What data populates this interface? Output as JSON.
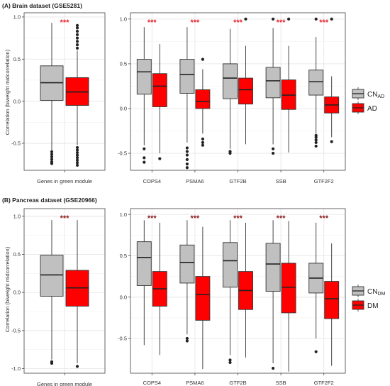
{
  "colors": {
    "control": "#c0c0c0",
    "disease": "#ff0000",
    "stroke": "#333333",
    "grid": "#e6e6e6",
    "frame": "#555555",
    "star_brain": "#e8202a",
    "star_pancreas": "#8b1a1a"
  },
  "panels": [
    {
      "title": "(A) Brain dataset (GSE5281)",
      "ylabel": "Correlation (biweight midcorrelation)",
      "legend": [
        {
          "label_main": "CN",
          "label_sub": "AD",
          "color_key": "control"
        },
        {
          "label_main": "AD",
          "label_sub": "",
          "color_key": "disease"
        }
      ],
      "star_color_key": "star_brain",
      "left": {
        "ylim": [
          -0.82,
          1.05
        ],
        "yticks": [
          "1.0",
          "0.5",
          "0.0",
          "-0.5"
        ],
        "ytick_values": [
          1.0,
          0.5,
          0.0,
          -0.5
        ],
        "category": "Genes in green module",
        "significance": "***",
        "boxes": [
          {
            "q1": 0.01,
            "median": 0.22,
            "q3": 0.42,
            "wlo": -0.58,
            "whi": 0.93,
            "outliers_lo": [
              -0.6,
              -0.63,
              -0.66,
              -0.69,
              -0.72,
              -0.74
            ],
            "outliers_hi": [],
            "group": "control"
          },
          {
            "q1": -0.05,
            "median": 0.11,
            "q3": 0.28,
            "wlo": -0.52,
            "whi": 0.6,
            "outliers_lo": [
              -0.55,
              -0.58,
              -0.61,
              -0.64,
              -0.67,
              -0.7,
              -0.73,
              -0.76
            ],
            "outliers_hi": [
              0.63,
              0.67,
              0.71,
              0.75,
              0.79,
              0.83,
              0.87,
              0.9
            ],
            "group": "disease"
          }
        ]
      },
      "right": {
        "ylim": [
          -0.69,
          1.07
        ],
        "yticks": [
          "1.0",
          "0.5",
          "0.0",
          "-0.5"
        ],
        "ytick_values": [
          1.0,
          0.5,
          0.0,
          -0.5
        ],
        "categories": [
          {
            "label": "COPS4",
            "significance": "***",
            "boxes": [
              {
                "q1": 0.16,
                "median": 0.41,
                "q3": 0.55,
                "wlo": -0.41,
                "whi": 0.91,
                "outliers_lo": [
                  -0.45,
                  -0.55,
                  -0.6
                ],
                "outliers_hi": [],
                "group": "control"
              },
              {
                "q1": 0.02,
                "median": 0.25,
                "q3": 0.39,
                "wlo": -0.5,
                "whi": 0.72,
                "outliers_lo": [
                  -0.56
                ],
                "outliers_hi": [],
                "group": "disease"
              }
            ]
          },
          {
            "label": "PSMA6",
            "significance": "***",
            "boxes": [
              {
                "q1": 0.17,
                "median": 0.38,
                "q3": 0.55,
                "wlo": -0.38,
                "whi": 0.91,
                "outliers_lo": [
                  -0.44,
                  -0.48,
                  -0.52,
                  -0.57,
                  -0.62,
                  -0.66
                ],
                "outliers_hi": [],
                "group": "control"
              },
              {
                "q1": 0.0,
                "median": 0.08,
                "q3": 0.21,
                "wlo": -0.28,
                "whi": 0.44,
                "outliers_lo": [
                  -0.34,
                  -0.38,
                  -0.41
                ],
                "outliers_hi": [
                  0.55
                ],
                "group": "disease"
              }
            ]
          },
          {
            "label": "GTF2B",
            "significance": "***",
            "boxes": [
              {
                "q1": 0.11,
                "median": 0.34,
                "q3": 0.5,
                "wlo": -0.45,
                "whi": 0.89,
                "outliers_lo": [
                  -0.48,
                  -0.5
                ],
                "outliers_hi": [],
                "group": "control"
              },
              {
                "q1": 0.05,
                "median": 0.21,
                "q3": 0.34,
                "wlo": -0.4,
                "whi": 0.7,
                "outliers_lo": [],
                "outliers_hi": [
                  1.0
                ],
                "group": "disease"
              }
            ]
          },
          {
            "label": "SSB",
            "significance": "***",
            "boxes": [
              {
                "q1": 0.12,
                "median": 0.31,
                "q3": 0.46,
                "wlo": -0.4,
                "whi": 0.9,
                "outliers_lo": [
                  -0.45,
                  -0.5
                ],
                "outliers_hi": [
                  1.0
                ],
                "group": "control"
              },
              {
                "q1": -0.01,
                "median": 0.15,
                "q3": 0.32,
                "wlo": -0.49,
                "whi": 0.7,
                "outliers_lo": [],
                "outliers_hi": [
                  1.0
                ],
                "group": "disease"
              }
            ]
          },
          {
            "label": "GTF2F2",
            "significance": "***",
            "boxes": [
              {
                "q1": 0.15,
                "median": 0.3,
                "q3": 0.43,
                "wlo": -0.28,
                "whi": 0.8,
                "outliers_lo": [
                  -0.3,
                  -0.32,
                  -0.35,
                  -0.38,
                  -0.42
                ],
                "outliers_hi": [
                  1.0
                ],
                "group": "control"
              },
              {
                "q1": -0.05,
                "median": 0.04,
                "q3": 0.13,
                "wlo": -0.32,
                "whi": 0.36,
                "outliers_lo": [
                  -0.37
                ],
                "outliers_hi": [
                  1.0
                ],
                "group": "disease"
              }
            ]
          }
        ]
      }
    },
    {
      "title": "(B) Pancreas dataset (GSE20966)",
      "ylabel": "Correlation (biweight midcorrelation)",
      "legend": [
        {
          "label_main": "CN",
          "label_sub": "DM",
          "color_key": "control"
        },
        {
          "label_main": "DM",
          "label_sub": "",
          "color_key": "disease"
        }
      ],
      "star_color_key": "star_pancreas",
      "left": {
        "ylim": [
          -1.06,
          1.1
        ],
        "yticks": [
          "1.0",
          "0.5",
          "0.0",
          "-0.5",
          "-1.0"
        ],
        "ytick_values": [
          1.0,
          0.5,
          0.0,
          -0.5,
          -1.0
        ],
        "category": "Genes in green module",
        "significance": "***",
        "boxes": [
          {
            "q1": -0.05,
            "median": 0.23,
            "q3": 0.49,
            "wlo": -0.88,
            "whi": 0.95,
            "outliers_lo": [
              -0.91,
              -0.93
            ],
            "outliers_hi": [],
            "group": "control"
          },
          {
            "q1": -0.18,
            "median": 0.06,
            "q3": 0.29,
            "wlo": -0.93,
            "whi": 0.95,
            "outliers_lo": [
              -0.97
            ],
            "outliers_hi": [],
            "group": "disease"
          }
        ]
      },
      "right": {
        "ylim": [
          -0.92,
          1.07
        ],
        "yticks": [
          "1.0",
          "0.5",
          "0.0",
          "-0.5"
        ],
        "ytick_values": [
          1.0,
          0.5,
          0.0,
          -0.5
        ],
        "categories": [
          {
            "label": "COPS4",
            "significance": "***",
            "boxes": [
              {
                "q1": 0.14,
                "median": 0.48,
                "q3": 0.67,
                "wlo": -0.58,
                "whi": 0.93,
                "outliers_lo": [],
                "outliers_hi": [],
                "group": "control"
              },
              {
                "q1": -0.11,
                "median": 0.1,
                "q3": 0.31,
                "wlo": -0.7,
                "whi": 0.9,
                "outliers_lo": [],
                "outliers_hi": [],
                "group": "disease"
              }
            ]
          },
          {
            "label": "PSMA6",
            "significance": "***",
            "boxes": [
              {
                "q1": 0.17,
                "median": 0.42,
                "q3": 0.63,
                "wlo": -0.45,
                "whi": 0.93,
                "outliers_lo": [
                  -0.5,
                  -0.53
                ],
                "outliers_hi": [],
                "group": "control"
              },
              {
                "q1": -0.28,
                "median": 0.03,
                "q3": 0.25,
                "wlo": -0.87,
                "whi": 0.85,
                "outliers_lo": [],
                "outliers_hi": [],
                "group": "disease"
              }
            ]
          },
          {
            "label": "GTF2B",
            "significance": "***",
            "boxes": [
              {
                "q1": 0.12,
                "median": 0.44,
                "q3": 0.66,
                "wlo": -0.7,
                "whi": 0.93,
                "outliers_lo": [
                  -0.76,
                  -0.79
                ],
                "outliers_hi": [],
                "group": "control"
              },
              {
                "q1": -0.15,
                "median": 0.08,
                "q3": 0.31,
                "wlo": -0.73,
                "whi": 0.9,
                "outliers_lo": [],
                "outliers_hi": [],
                "group": "disease"
              }
            ]
          },
          {
            "label": "SSB",
            "significance": "***",
            "boxes": [
              {
                "q1": 0.07,
                "median": 0.4,
                "q3": 0.65,
                "wlo": -0.8,
                "whi": 0.93,
                "outliers_lo": [
                  -0.86
                ],
                "outliers_hi": [],
                "group": "control"
              },
              {
                "q1": -0.19,
                "median": 0.12,
                "q3": 0.41,
                "wlo": -0.9,
                "whi": 0.92,
                "outliers_lo": [],
                "outliers_hi": [],
                "group": "disease"
              }
            ]
          },
          {
            "label": "GTF2F2",
            "significance": "***",
            "boxes": [
              {
                "q1": 0.05,
                "median": 0.23,
                "q3": 0.41,
                "wlo": -0.5,
                "whi": 0.9,
                "outliers_lo": [
                  -0.66
                ],
                "outliers_hi": [],
                "group": "control"
              },
              {
                "q1": -0.26,
                "median": -0.02,
                "q3": 0.19,
                "wlo": -0.83,
                "whi": 0.65,
                "outliers_lo": [],
                "outliers_hi": [],
                "group": "disease"
              }
            ]
          }
        ]
      }
    }
  ],
  "chart_data": [
    {
      "type": "box",
      "title": "(A) Brain dataset (GSE5281)",
      "ylabel": "Correlation (biweight midcorrelation)",
      "series": [
        {
          "name": "CNAD"
        },
        {
          "name": "AD"
        }
      ],
      "categories": [
        "Genes in green module",
        "COPS4",
        "PSMA6",
        "GTF2B",
        "SSB",
        "GTF2F2"
      ],
      "medians": {
        "CNAD": [
          0.22,
          0.41,
          0.38,
          0.34,
          0.31,
          0.3
        ],
        "AD": [
          0.11,
          0.25,
          0.08,
          0.21,
          0.15,
          0.04
        ]
      },
      "significance": [
        "***",
        "***",
        "***",
        "***",
        "***",
        "***"
      ],
      "legend": "right",
      "grid": true
    },
    {
      "type": "box",
      "title": "(B) Pancreas dataset (GSE20966)",
      "ylabel": "Correlation (biweight midcorrelation)",
      "series": [
        {
          "name": "CNDM"
        },
        {
          "name": "DM"
        }
      ],
      "categories": [
        "Genes in green module",
        "COPS4",
        "PSMA6",
        "GTF2B",
        "SSB",
        "GTF2F2"
      ],
      "medians": {
        "CNDM": [
          0.23,
          0.48,
          0.42,
          0.44,
          0.4,
          0.23
        ],
        "DM": [
          0.06,
          0.1,
          0.03,
          0.08,
          0.12,
          -0.02
        ]
      },
      "significance": [
        "***",
        "***",
        "***",
        "***",
        "***",
        "***"
      ],
      "legend": "right",
      "grid": true
    }
  ]
}
